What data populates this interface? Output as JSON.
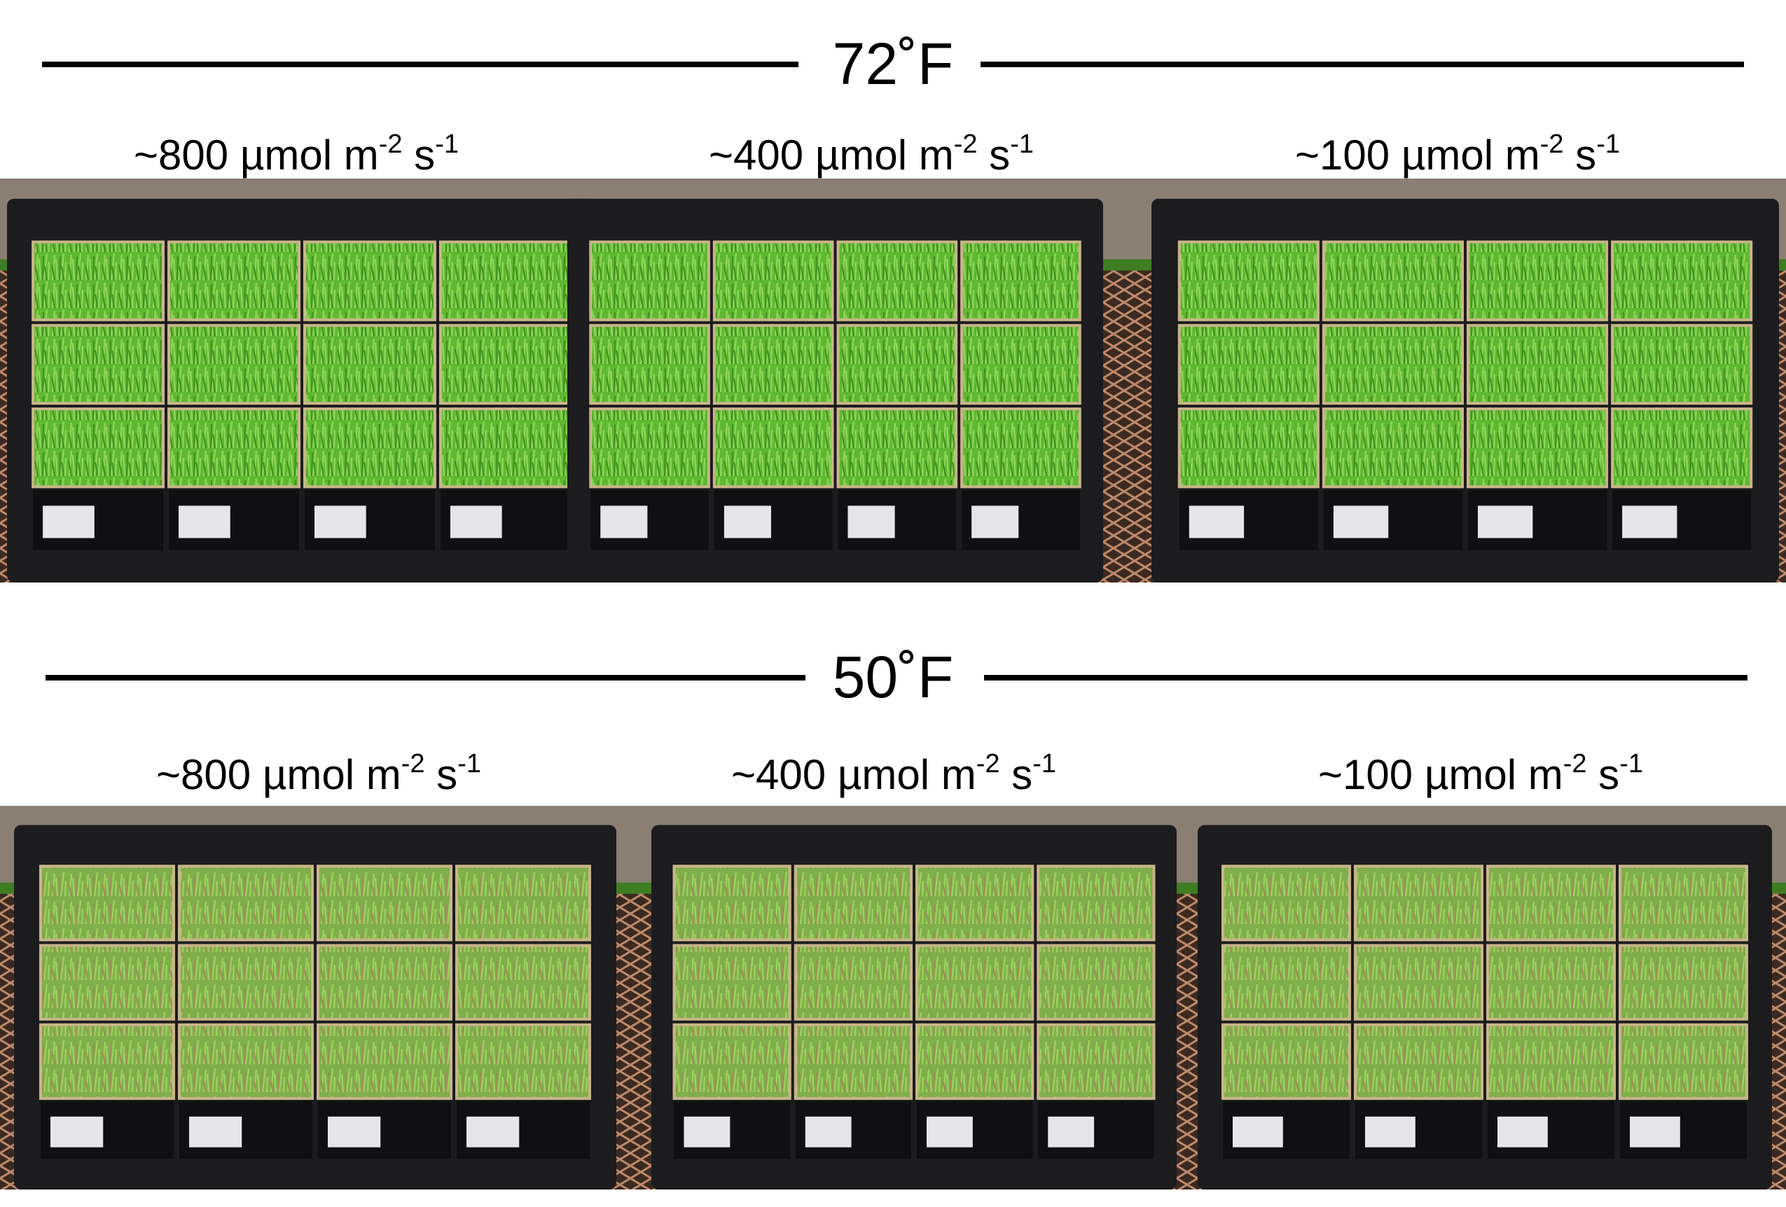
{
  "panels": [
    {
      "title": "72˚F",
      "labels": [
        {
          "base": "~800 µmol m",
          "exp": "-2",
          "base2": " s",
          "exp2": "-1"
        },
        {
          "base": "~400 µmol m",
          "exp": "-2",
          "base2": " s",
          "exp2": "-1"
        },
        {
          "base": "~100 µmol m",
          "exp": "-2",
          "base2": " s",
          "exp2": "-1"
        }
      ]
    },
    {
      "title": "50˚F",
      "labels": [
        {
          "base": "~800 µmol m",
          "exp": "-2",
          "base2": " s",
          "exp2": "-1"
        },
        {
          "base": "~400 µmol m",
          "exp": "-2",
          "base2": " s",
          "exp2": "-1"
        },
        {
          "base": "~100 µmol m",
          "exp": "-2",
          "base2": " s",
          "exp2": "-1"
        }
      ]
    }
  ]
}
